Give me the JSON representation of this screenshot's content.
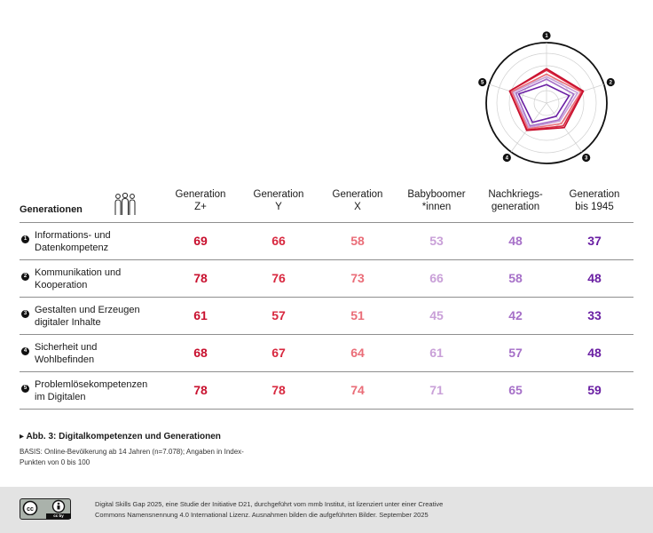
{
  "chart_data": {
    "type": "table",
    "title": "Abb. 3: Digitalkompetenzen und Generationen",
    "row_header": "Generationen",
    "columns": [
      {
        "line1": "Generation",
        "line2": "Z+",
        "color": "#c8102e"
      },
      {
        "line1": "Generation",
        "line2": "Y",
        "color": "#d8283f"
      },
      {
        "line1": "Generation",
        "line2": "X",
        "color": "#ea6d78"
      },
      {
        "line1": "Babyboomer",
        "line2": "*innen",
        "color": "#c9a0d8"
      },
      {
        "line1": "Nachkriegs-",
        "line2": "generation",
        "color": "#a670c8"
      },
      {
        "line1": "Generation",
        "line2": "bis 1945",
        "color": "#6a1fa3"
      }
    ],
    "rows": [
      {
        "num": "1",
        "line1": "Informations- und",
        "line2": "Datenkompetenz",
        "values": [
          69,
          66,
          58,
          53,
          48,
          37
        ]
      },
      {
        "num": "2",
        "line1": "Kommunikation und",
        "line2": "Kooperation",
        "values": [
          78,
          76,
          73,
          66,
          58,
          48
        ]
      },
      {
        "num": "3",
        "line1": "Gestalten und Erzeugen",
        "line2": "digitaler Inhalte",
        "values": [
          61,
          57,
          51,
          45,
          42,
          33
        ]
      },
      {
        "num": "4",
        "line1": "Sicherheit und",
        "line2": "Wohlbefinden",
        "values": [
          68,
          67,
          64,
          61,
          57,
          48
        ]
      },
      {
        "num": "5",
        "line1": "Problemlösekompetenzen",
        "line2": "im Digitalen",
        "values": [
          78,
          78,
          74,
          71,
          65,
          59
        ]
      }
    ],
    "radar": {
      "axes": [
        "1",
        "2",
        "3",
        "4",
        "5"
      ],
      "min": 0,
      "max": 100
    },
    "basis_line1": "BASIS: Online-Bevölkerung ab 14 Jahren (n=7.078); Angaben in Index-",
    "basis_line2": "Punkten von 0 bis 100"
  },
  "caption_prefix": "▸",
  "footer": {
    "line1": "Digital Skills Gap 2025, eine Studie der Initiative D21, durchgeführt vom mmb Institut, ist lizenziert unter einer Creative",
    "line2": "Commons Namensnennung 4.0 International Lizenz. Ausnahmen bilden die aufgeführten Bilder. September 2025",
    "badge": "cc by"
  }
}
